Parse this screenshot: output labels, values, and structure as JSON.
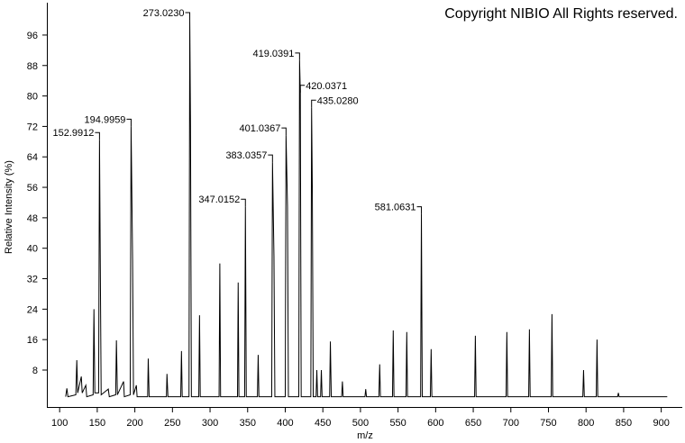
{
  "chart_data": {
    "type": "line",
    "watermark": "Copyright NIBIO All Rights reserved.",
    "x_label": "m/z",
    "y_label": "Relative Intensity (%)",
    "color": "#000000",
    "xlim": [
      83,
      928
    ],
    "ylim": [
      -1.7,
      104.5
    ],
    "xticks": [
      100,
      150,
      200,
      250,
      300,
      350,
      400,
      450,
      500,
      550,
      600,
      650,
      700,
      750,
      800,
      850,
      900
    ],
    "yticks": [
      8,
      16,
      24,
      32,
      40,
      48,
      56,
      64,
      72,
      80,
      88,
      96
    ],
    "x": [
      108,
      109.6,
      111,
      121.5,
      122.8,
      124,
      128.8,
      130,
      134.8,
      136,
      144.5,
      145.6,
      146.8,
      151.8,
      152.99,
      154,
      155.2,
      164.7,
      166,
      174.5,
      175.5,
      176.8,
      185,
      186,
      193.8,
      195.0,
      197,
      198.2,
      202,
      203,
      217,
      217.8,
      219,
      242,
      242.7,
      244,
      261,
      262,
      263,
      272,
      273.02,
      274,
      275.2,
      285,
      286,
      287,
      312,
      313,
      314,
      336.5,
      337.4,
      338.4,
      346,
      347.02,
      348.2,
      363,
      364,
      365,
      382,
      383.04,
      385,
      386.2,
      400,
      401.04,
      403,
      404.2,
      418,
      419.04,
      420.04,
      421.2,
      434,
      435.03,
      436,
      437.2,
      441,
      442,
      443,
      447,
      448,
      449,
      459,
      460,
      461.2,
      475,
      476,
      477,
      506,
      507,
      508,
      524.5,
      525.6,
      526.6,
      542.6,
      543.6,
      544.6,
      560.6,
      561.6,
      562.6,
      580,
      581.06,
      582.2,
      593,
      594,
      595,
      651.8,
      652.8,
      653.8,
      693.7,
      694.7,
      695.7,
      723.7,
      724.7,
      725.7,
      753.7,
      754.7,
      755.7,
      795.7,
      796.7,
      797.7,
      813.6,
      814.6,
      815.6,
      842,
      843,
      844,
      908
    ],
    "values": [
      1,
      3.2,
      1,
      1.5,
      10.6,
      2,
      6.3,
      2,
      4,
      1,
      1.5,
      24,
      2,
      2,
      68.5,
      37,
      1.5,
      3,
      1,
      1.5,
      15.8,
      1.5,
      5,
      1,
      1.5,
      72,
      37,
      1.5,
      4,
      1,
      1,
      11,
      1,
      1,
      7,
      1,
      1,
      13,
      1,
      1,
      100,
      72.5,
      1,
      1,
      22.4,
      1,
      1,
      36,
      1,
      1,
      31,
      1,
      1,
      51,
      1,
      1,
      12,
      1,
      1,
      62.6,
      38,
      1,
      1,
      69.7,
      51,
      1,
      1,
      89.4,
      80.9,
      1,
      1,
      77,
      56,
      1,
      1,
      8,
      1,
      1,
      8,
      1,
      1,
      15.5,
      1,
      1,
      5,
      1,
      1,
      3,
      1,
      1,
      9.5,
      1,
      1,
      18.4,
      1,
      1,
      18,
      1,
      1,
      49,
      1,
      1,
      13.5,
      1,
      1,
      17,
      1,
      1,
      18,
      1,
      1,
      18.7,
      1,
      1,
      22.7,
      1,
      1,
      8,
      1,
      1,
      16,
      1,
      1,
      2,
      1,
      1
    ],
    "annotations": [
      {
        "text": "152.9912",
        "x": 152.99,
        "y": 68.5,
        "side": "left"
      },
      {
        "text": "194.9959",
        "x": 195.0,
        "y": 72,
        "side": "left"
      },
      {
        "text": "273.0230",
        "x": 273.02,
        "y": 100,
        "side": "left"
      },
      {
        "text": "347.0152",
        "x": 347.02,
        "y": 51,
        "side": "left"
      },
      {
        "text": "383.0357",
        "x": 383.04,
        "y": 62.6,
        "side": "left"
      },
      {
        "text": "401.0367",
        "x": 401.04,
        "y": 69.7,
        "side": "left"
      },
      {
        "text": "419.0391",
        "x": 419.04,
        "y": 89.4,
        "side": "left"
      },
      {
        "text": "420.0371",
        "x": 420.04,
        "y": 80.9,
        "side": "right"
      },
      {
        "text": "435.0280",
        "x": 435.03,
        "y": 77,
        "side": "right"
      },
      {
        "text": "581.0631",
        "x": 581.06,
        "y": 49,
        "side": "left"
      }
    ]
  }
}
